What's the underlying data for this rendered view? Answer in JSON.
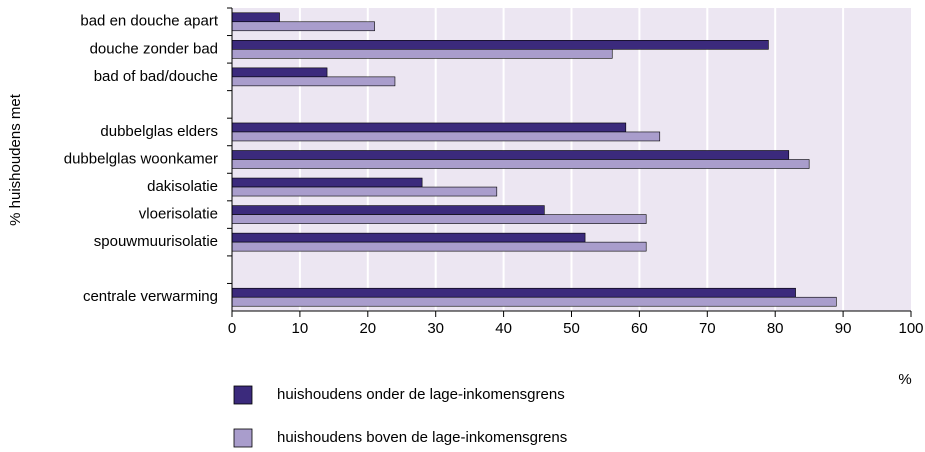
{
  "chart_data": {
    "type": "barh",
    "ylabel": "% huishoudens met",
    "xlabel": "%",
    "categories": [
      "bad en douche apart",
      "douche zonder bad",
      "bad of bad/douche",
      null,
      "dubbelglas elders",
      "dubbelglas woonkamer",
      "dakisolatie",
      "vloerisolatie",
      "spouwmuurisolatie",
      null,
      "centrale verwarming"
    ],
    "series": [
      {
        "name": "huishoudens onder de lage-inkomensgrens",
        "color": "#3b2a7c",
        "values": [
          7,
          79,
          14,
          null,
          58,
          82,
          28,
          46,
          52,
          null,
          83
        ]
      },
      {
        "name": "huishoudens boven de lage-inkomensgrens",
        "color": "#a99dcc",
        "values": [
          21,
          56,
          24,
          null,
          63,
          85,
          39,
          61,
          61,
          null,
          89
        ]
      }
    ],
    "xlim": [
      0,
      100
    ],
    "xticks": [
      0,
      10,
      20,
      30,
      40,
      50,
      60,
      70,
      80,
      90,
      100
    ],
    "grid": true
  }
}
